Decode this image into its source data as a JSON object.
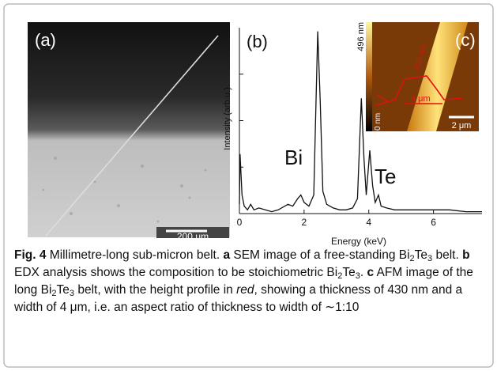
{
  "figure": {
    "panel_a": {
      "label": "(a)",
      "scale_bar": "200 μm"
    },
    "panel_c": {
      "label": "(c)",
      "colorbar_max": "496 nm",
      "colorbar_min": "0 nm",
      "height": "430 nm",
      "width": "4 μm",
      "scale_bar": "2 μm"
    }
  },
  "chart_data": {
    "type": "line",
    "panel_label": "(b)",
    "xlabel": "Energy (keV)",
    "ylabel": "Intensity (arb.u.)",
    "annotations": [
      "Bi",
      "Te"
    ],
    "color": "#111111",
    "x": [
      0,
      0.02,
      0.08,
      0.15,
      0.25,
      0.35,
      0.45,
      0.6,
      0.8,
      1.0,
      1.2,
      1.5,
      1.65,
      1.8,
      1.9,
      2.0,
      2.15,
      2.3,
      2.42,
      2.5,
      2.58,
      2.7,
      2.9,
      3.1,
      3.3,
      3.5,
      3.65,
      3.77,
      3.85,
      3.92,
      4.03,
      4.12,
      4.2,
      4.3,
      4.38,
      4.55,
      4.8,
      5.2,
      5.6,
      6.0,
      6.5,
      7.0,
      7.5
    ],
    "values": [
      5,
      32,
      10,
      4,
      2,
      5,
      2,
      3,
      2,
      1,
      2,
      5,
      4,
      8,
      10,
      6,
      4,
      10,
      98,
      60,
      12,
      5,
      3,
      2,
      2,
      3,
      8,
      62,
      30,
      10,
      34,
      15,
      6,
      10,
      4,
      3,
      2,
      2,
      2,
      2,
      2,
      1,
      1
    ],
    "xlim": [
      0,
      7.5
    ],
    "ylim": [
      0,
      100
    ],
    "xticks": [
      0,
      2,
      4,
      6
    ]
  },
  "caption": [
    {
      "text": "Fig. 4",
      "style": "bold"
    },
    {
      "text": " Millimetre-long sub-micron belt. "
    },
    {
      "text": "a",
      "style": "bold"
    },
    {
      "text": " SEM image of a free-standing Bi"
    },
    {
      "text": "2",
      "style": "sub"
    },
    {
      "text": "Te"
    },
    {
      "text": "3",
      "style": "sub"
    },
    {
      "text": " belt. "
    },
    {
      "text": "b",
      "style": "bold"
    },
    {
      "text": " EDX analysis shows the composition to be stoichiometric Bi"
    },
    {
      "text": "2",
      "style": "sub"
    },
    {
      "text": "Te"
    },
    {
      "text": "3",
      "style": "sub"
    },
    {
      "text": ". "
    },
    {
      "text": "c",
      "style": "bold"
    },
    {
      "text": " AFM image of the long Bi"
    },
    {
      "text": "2",
      "style": "sub"
    },
    {
      "text": "Te"
    },
    {
      "text": "3",
      "style": "sub"
    },
    {
      "text": " belt, with the height profile in "
    },
    {
      "text": "red",
      "style": "italic"
    },
    {
      "text": ", showing a thickness of 430 nm and a width of 4 μm, i.e. an aspect ratio of thickness to width of ∼1:10"
    }
  ]
}
